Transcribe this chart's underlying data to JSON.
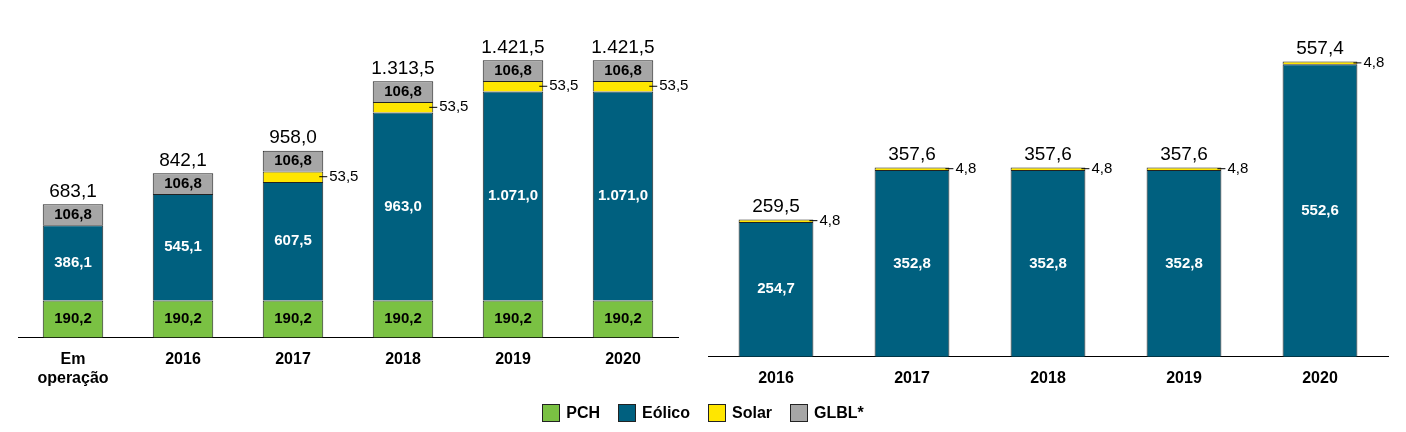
{
  "chart_data": [
    {
      "type": "bar",
      "stacked": true,
      "categories": [
        "Em operação",
        "2016",
        "2017",
        "2018",
        "2019",
        "2020"
      ],
      "tick_labels": "x",
      "grid": false,
      "legend": "bottom",
      "series": [
        {
          "name": "PCH",
          "color": "#7ac143",
          "values": [
            190.2,
            190.2,
            190.2,
            190.2,
            190.2,
            190.2
          ],
          "value_labels": [
            "190,2",
            "190,2",
            "190,2",
            "190,2",
            "190,2",
            "190,2"
          ]
        },
        {
          "name": "Eólico",
          "color": "#00607f",
          "values": [
            386.1,
            545.1,
            607.5,
            963.0,
            1071.0,
            1071.0
          ],
          "value_labels": [
            "386,1",
            "545,1",
            "607,5",
            "963,0",
            "1.071,0",
            "1.071,0"
          ]
        },
        {
          "name": "Solar",
          "color": "#ffe600",
          "values": [
            null,
            null,
            53.5,
            53.5,
            53.5,
            53.5
          ],
          "value_labels": [
            null,
            null,
            "53,5",
            "53,5",
            "53,5",
            "53,5"
          ]
        },
        {
          "name": "GLBL*",
          "color": "#a6a6a6",
          "values": [
            106.8,
            106.8,
            106.8,
            106.8,
            106.8,
            106.8
          ],
          "value_labels": [
            "106,8",
            "106,8",
            "106,8",
            "106,8",
            "106,8",
            "106,8"
          ]
        }
      ],
      "totals": [
        "683,1",
        "842,1",
        "958,0",
        "1.313,5",
        "1.421,5",
        "1.421,5"
      ]
    },
    {
      "type": "bar",
      "stacked": true,
      "categories": [
        "2016",
        "2017",
        "2018",
        "2019",
        "2020"
      ],
      "tick_labels": "x",
      "grid": false,
      "series": [
        {
          "color": "#00607f",
          "values": [
            254.7,
            352.8,
            352.8,
            352.8,
            552.6
          ],
          "value_labels": [
            "254,7",
            "352,8",
            "352,8",
            "352,8",
            "552,6"
          ]
        },
        {
          "color": "#ffe600",
          "values": [
            4.8,
            4.8,
            4.8,
            4.8,
            4.8
          ],
          "value_labels": [
            "4,8",
            "4,8",
            "4,8",
            "4,8",
            "4,8"
          ]
        }
      ],
      "totals": [
        "259,5",
        "357,6",
        "357,6",
        "357,6",
        "557,4"
      ]
    }
  ]
}
